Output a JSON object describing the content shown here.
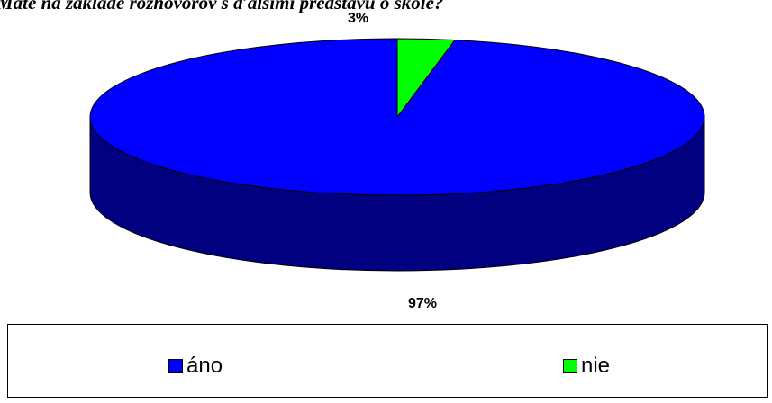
{
  "chart_data": {
    "type": "pie",
    "title": "Máte na základe rozhovorov s ďalšími predstavu o škole?",
    "categories": [
      "áno",
      "nie"
    ],
    "values": [
      97,
      3
    ],
    "value_labels": [
      "97%",
      "3%"
    ],
    "colors": [
      "#0000ff",
      "#00ff00"
    ],
    "side_colors": [
      "#000080",
      "#008000"
    ],
    "three_d": true,
    "legend_position": "bottom"
  }
}
